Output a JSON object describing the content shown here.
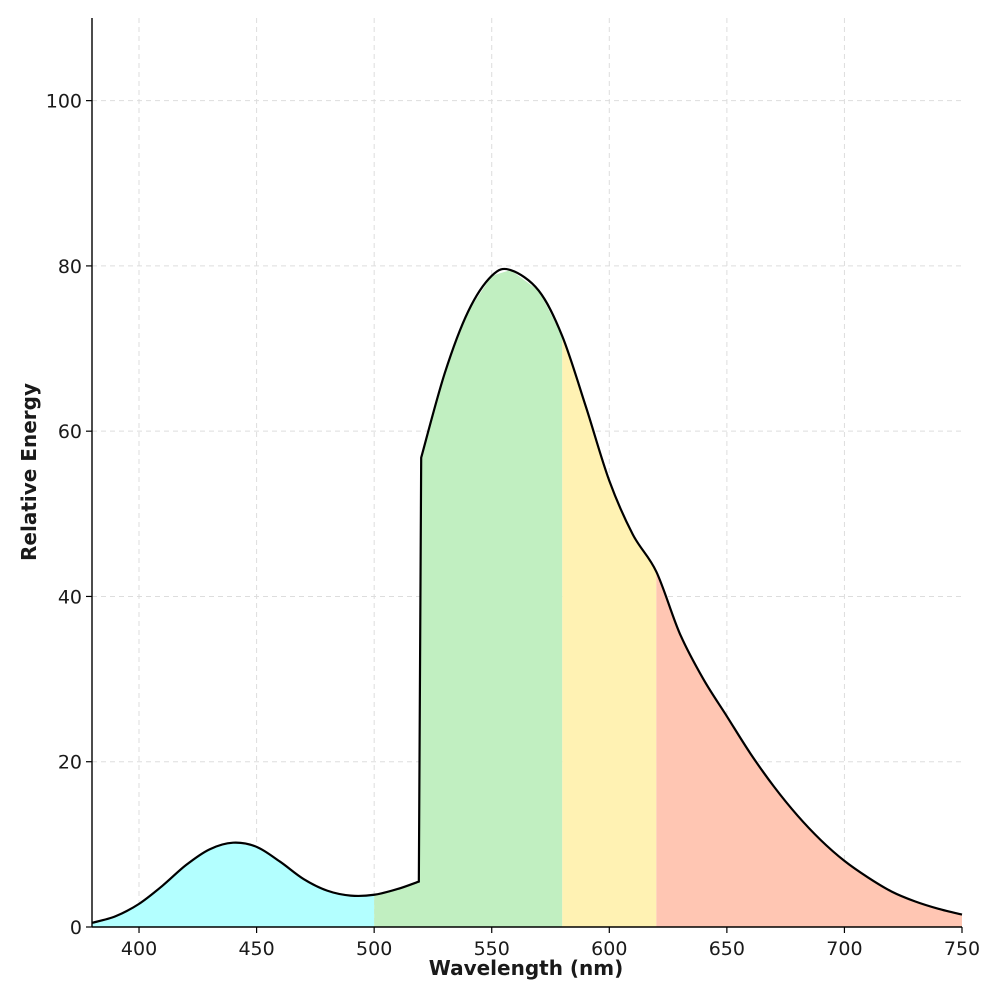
{
  "chart_data": {
    "type": "area",
    "title": "",
    "xlabel": "Wavelength (nm)",
    "ylabel": "Relative Energy",
    "xlim": [
      380,
      750
    ],
    "ylim": [
      0,
      110
    ],
    "xticks": [
      400,
      450,
      500,
      550,
      600,
      650,
      700,
      750
    ],
    "yticks": [
      0,
      20,
      40,
      60,
      80,
      100
    ],
    "grid": true,
    "x": [
      380,
      390,
      400,
      410,
      420,
      430,
      440,
      450,
      460,
      470,
      480,
      490,
      500,
      510,
      519,
      520,
      530,
      540,
      550,
      558,
      570,
      580,
      590,
      600,
      610,
      620,
      630,
      640,
      650,
      660,
      670,
      680,
      690,
      700,
      710,
      720,
      730,
      740,
      750
    ],
    "y": [
      0.5,
      1.3,
      2.8,
      5.0,
      7.5,
      9.4,
      10.2,
      9.7,
      7.9,
      5.8,
      4.4,
      3.8,
      3.9,
      4.6,
      5.5,
      56.8,
      67.0,
      74.5,
      78.8,
      79.5,
      77.0,
      71.5,
      63.0,
      54.0,
      47.5,
      43.0,
      35.5,
      30.0,
      25.5,
      21.0,
      17.0,
      13.5,
      10.5,
      8.0,
      6.0,
      4.3,
      3.1,
      2.2,
      1.5
    ],
    "bands": [
      {
        "from": 380,
        "to": 500,
        "color": "#b3ffff"
      },
      {
        "from": 500,
        "to": 580,
        "color": "#c1efc1"
      },
      {
        "from": 580,
        "to": 620,
        "color": "#fff2b3"
      },
      {
        "from": 620,
        "to": 750,
        "color": "#ffc6b3"
      }
    ],
    "line_color": "#000000"
  }
}
